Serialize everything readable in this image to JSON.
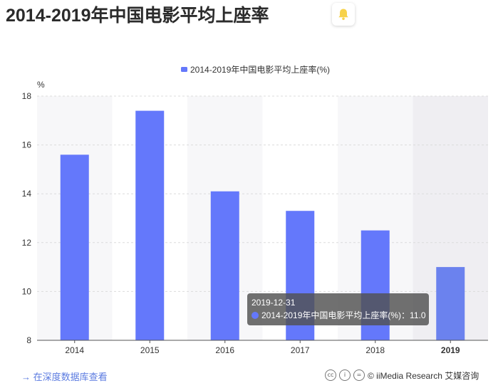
{
  "title": "2014-2019年中国电影平均上座率",
  "footer": {
    "link": "→ 在深度数据库查看",
    "credit": "© iiMedia Research 艾媒咨询"
  },
  "tooltip": {
    "date": "2019-12-31",
    "text": "2014-2019年中国电影平均上座率(%)：11.0"
  },
  "colors": {
    "bar": "#6478fb",
    "bar_highlight": "#6b82ee",
    "bell": "#f7d24b"
  },
  "chart_data": {
    "type": "bar",
    "categories": [
      "2014",
      "2015",
      "2016",
      "2017",
      "2018",
      "2019"
    ],
    "series": [
      {
        "name": "2014-2019年中国电影平均上座率(%)",
        "values": [
          15.6,
          17.4,
          14.1,
          13.3,
          12.5,
          11.0
        ]
      }
    ],
    "ylabel": "%",
    "ylim": [
      8,
      18
    ],
    "yticks": [
      "8",
      "10",
      "12",
      "14",
      "16",
      "18"
    ],
    "legend": "top-center",
    "grid": true,
    "highlighted_category": "2019"
  }
}
